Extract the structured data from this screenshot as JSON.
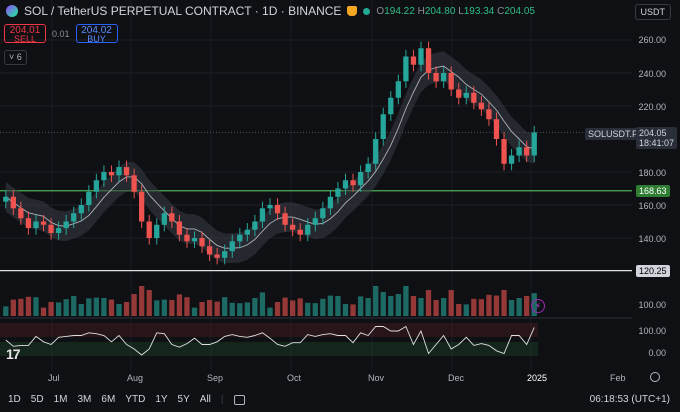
{
  "header": {
    "title": "SOL / TetherUS PERPETUAL CONTRACT · 1D · BINANCE",
    "ohlc": {
      "o_label": "O",
      "o": "194.22",
      "h_label": "H",
      "h": "204.80",
      "l_label": "L",
      "l": "193.34",
      "c_label": "C",
      "c": "204.05"
    },
    "currency": "USDT"
  },
  "trade": {
    "sell_price": "204.01",
    "sell_label": "SELL",
    "spread": "0.01",
    "buy_price": "204.02",
    "buy_label": "BUY",
    "collapse_count": "6"
  },
  "price_axis": {
    "labels": [
      "260.00",
      "240.00",
      "220.00",
      "180.00",
      "160.00",
      "140.00",
      "100.00"
    ],
    "symbol_tag": "SOLUSDT.P",
    "last_price": "204.05",
    "countdown": "18:41:07",
    "level_high": "168.63",
    "level_low": "120.25"
  },
  "osc_axis": {
    "labels": [
      "100.00",
      "0.00"
    ]
  },
  "time_axis": {
    "labels": [
      "Jul",
      "Aug",
      "Sep",
      "Oct",
      "Nov",
      "Dec",
      "2025",
      "Feb"
    ]
  },
  "timeframes": [
    "1D",
    "5D",
    "1M",
    "3M",
    "6M",
    "YTD",
    "1Y",
    "5Y",
    "All"
  ],
  "clock": "06:18:53 (UTC+1)",
  "colors": {
    "up": "#26a69a",
    "down": "#ef5350",
    "level": "#4caf50",
    "ma": "#d1d4dc",
    "bg": "#0f1014"
  },
  "icons": {
    "brand": "tradingview-logo",
    "settings": "gear-icon",
    "calendar": "calendar-icon",
    "alert": "bell-icon"
  },
  "chart_data": {
    "type": "candlestick",
    "y_range": [
      100,
      270
    ],
    "closes": [
      165,
      158,
      152,
      146,
      150,
      148,
      143,
      146,
      150,
      155,
      160,
      168,
      175,
      180,
      178,
      183,
      178,
      168,
      150,
      140,
      148,
      155,
      150,
      142,
      138,
      140,
      135,
      130,
      128,
      132,
      138,
      142,
      145,
      150,
      158,
      160,
      155,
      148,
      145,
      142,
      148,
      152,
      158,
      165,
      170,
      175,
      172,
      180,
      185,
      200,
      215,
      225,
      235,
      250,
      245,
      255,
      240,
      235,
      240,
      230,
      225,
      228,
      222,
      218,
      212,
      200,
      185,
      190,
      195,
      190,
      204
    ],
    "levels": [
      168.63,
      120.25
    ],
    "last_price": 204.05
  }
}
